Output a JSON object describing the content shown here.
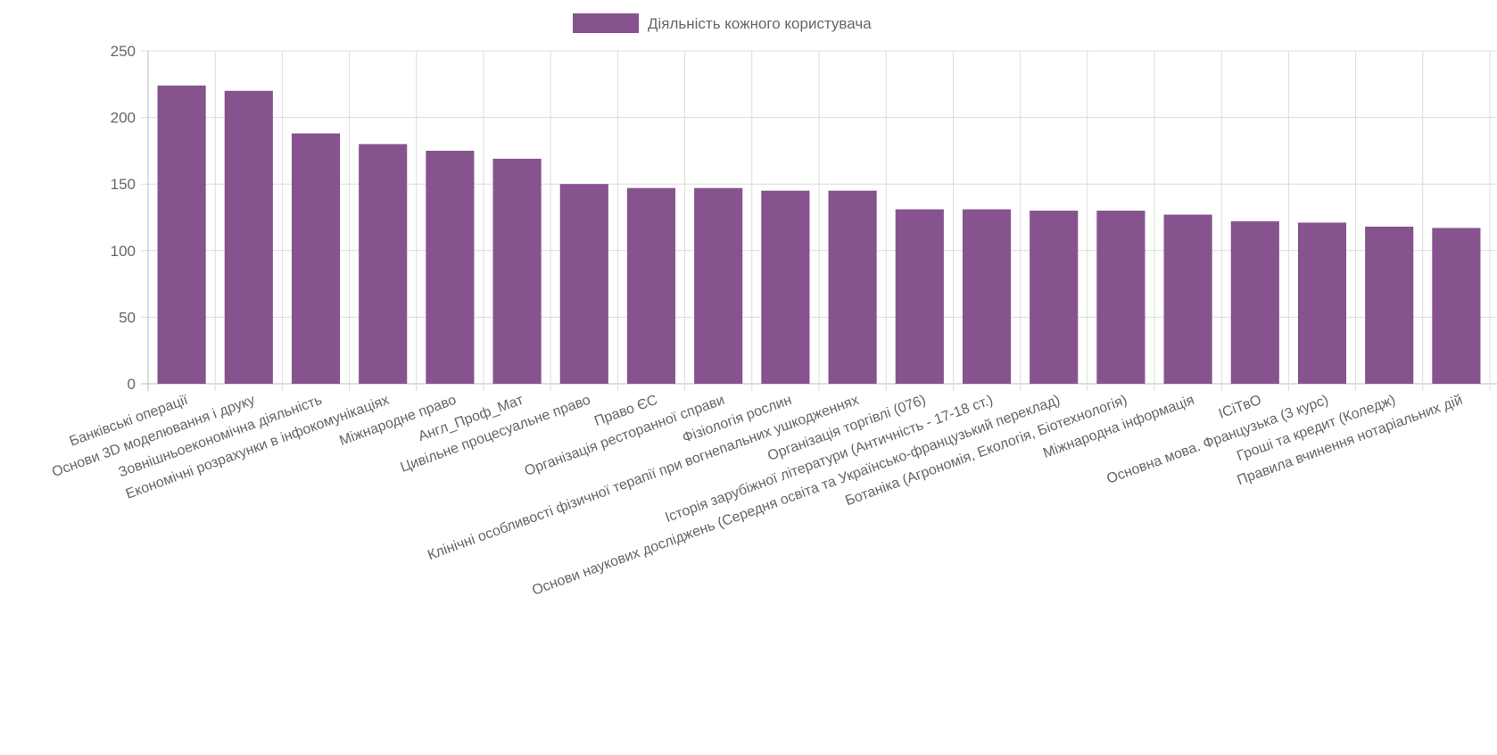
{
  "chart_data": {
    "type": "bar",
    "categories": [
      "Банківські операції",
      "Основи 3D моделювання і друку",
      "Зовнішньоекономічна діяльність",
      "Економічні розрахунки в інфокомунікаціях",
      "Міжнародне право",
      "Англ_Проф_Мат",
      "Цивільне процесуальне право",
      "Право ЄС",
      "Організація ресторанної справи",
      "Фізіологія рослин",
      "Клінічні особливості фізичної терапії при вогнепальних ушкодженнях",
      "Організація торгівлі (076)",
      "Історія зарубіжної літератури (Античність - 17-18 ст.)",
      "Основи наукових досліджень (Середня освіта та Українсько-французький переклад)",
      "Ботаніка (Агрономія, Екологія, Біотехнологія)",
      "Міжнародна інформація",
      "ІСіТвО",
      "Основна мова. Французька (3 курс)",
      "Гроші та кредит (Коледж)",
      "Правила вчинення нотаріальних дій"
    ],
    "series": [
      {
        "name": "Діяльність кожного користувача",
        "values": [
          224,
          220,
          188,
          180,
          175,
          169,
          150,
          147,
          147,
          145,
          145,
          131,
          131,
          130,
          130,
          127,
          122,
          121,
          118,
          117
        ],
        "color": "#87538f"
      }
    ],
    "yticks": [
      "0",
      "50",
      "100",
      "150",
      "200",
      "250"
    ],
    "ylim": [
      0,
      250
    ],
    "grid": true,
    "legend_position": "top-center",
    "title": "",
    "xlabel": "",
    "ylabel": ""
  }
}
